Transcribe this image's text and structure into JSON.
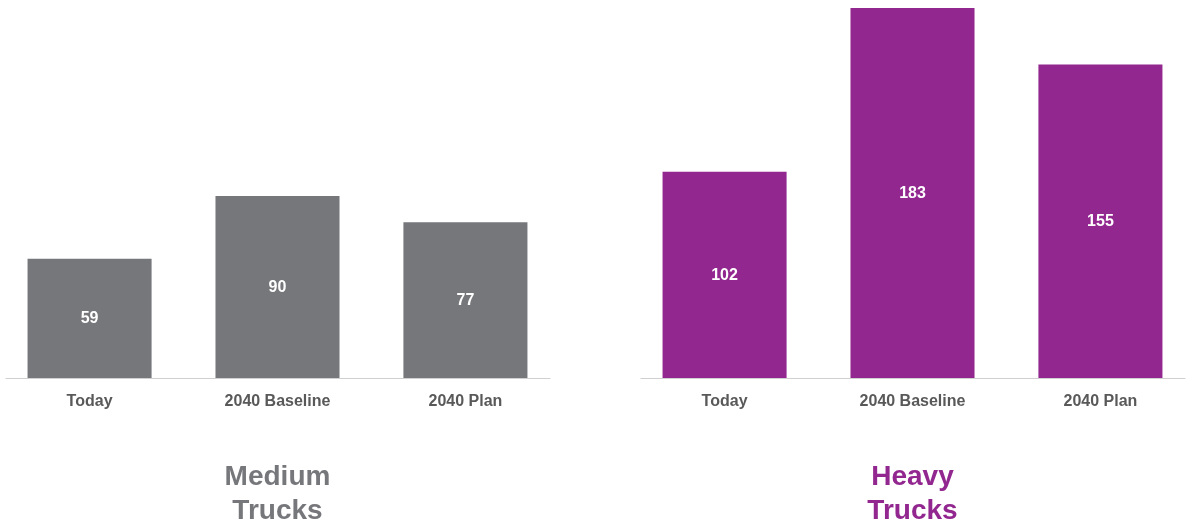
{
  "chart_data": [
    {
      "type": "bar",
      "title": "Medium Trucks",
      "categories": [
        "Today",
        "2040 Baseline",
        "2040 Plan"
      ],
      "series": [
        {
          "color": "#76777b",
          "values": [
            59,
            90,
            77
          ]
        }
      ],
      "data_labels": true,
      "tick_labels": "x"
    },
    {
      "type": "bar",
      "title": "Heavy Trucks",
      "categories": [
        "Today",
        "2040 Baseline",
        "2040 Plan"
      ],
      "series": [
        {
          "color": "#92278f",
          "values": [
            102,
            183,
            155
          ]
        }
      ],
      "data_labels": true,
      "tick_labels": "x"
    }
  ]
}
